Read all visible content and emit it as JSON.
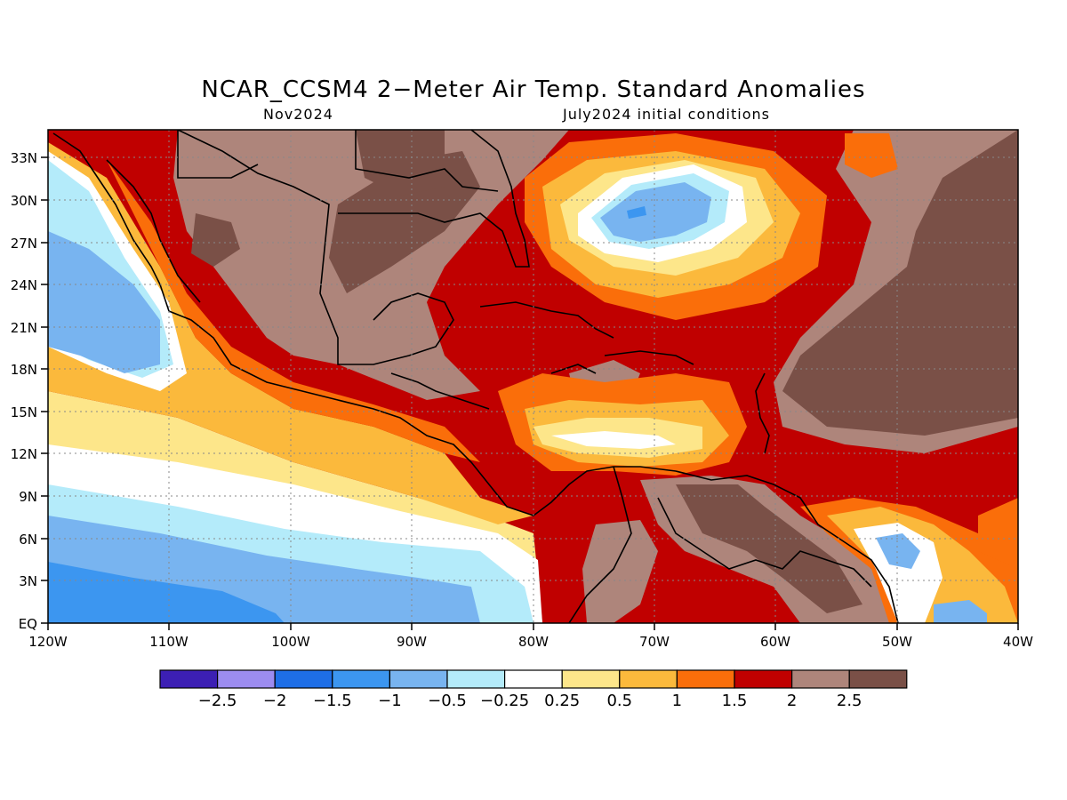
{
  "title": "NCAR_CCSM4 2−Meter Air Temp. Standard Anomalies",
  "subtitle_left": "Nov2024",
  "subtitle_right": "July2024 initial conditions",
  "map": {
    "lon_range": [
      -120,
      -40
    ],
    "lat_range": [
      0,
      35
    ],
    "x_ticks": [
      "120W",
      "110W",
      "100W",
      "90W",
      "80W",
      "70W",
      "60W",
      "50W",
      "40W"
    ],
    "y_ticks": [
      "EQ",
      "3N",
      "6N",
      "9N",
      "12N",
      "15N",
      "18N",
      "21N",
      "24N",
      "27N",
      "30N",
      "33N"
    ],
    "grid": true
  },
  "colorbar": {
    "colors": [
      "#3c1fb4",
      "#9c8cf0",
      "#1e6ee6",
      "#3c96f0",
      "#78b4f0",
      "#b4ebfa",
      "#ffffff",
      "#fde68a",
      "#fbb93c",
      "#fa6e0a",
      "#c00000",
      "#ae857b",
      "#7a5047"
    ],
    "labels": [
      "−2.5",
      "−2",
      "−1.5",
      "−1",
      "−0.5",
      "−0.25",
      "0.25",
      "0.5",
      "1",
      "1.5",
      "2",
      "2.5"
    ]
  }
}
